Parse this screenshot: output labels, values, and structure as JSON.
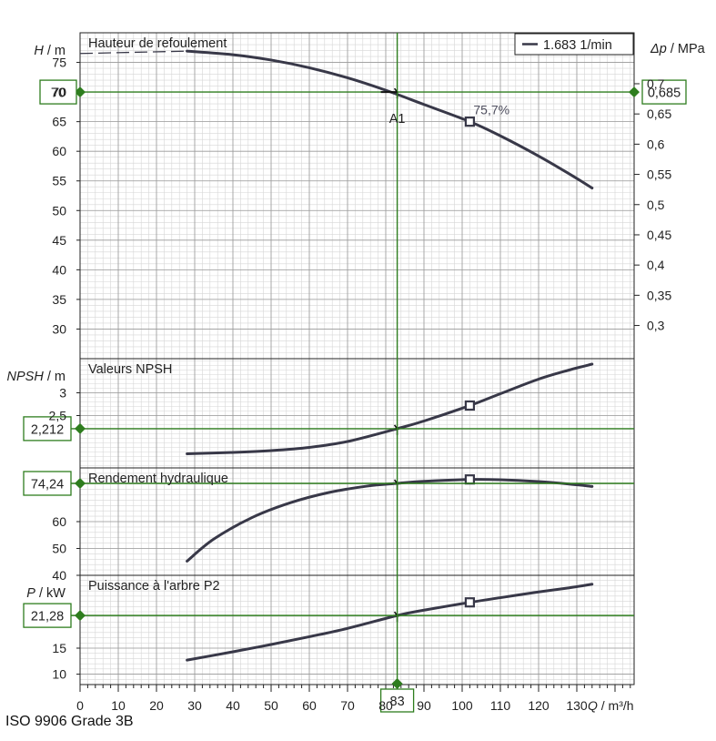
{
  "colors": {
    "curve": "#383848",
    "marker_line": "#2e7d1e",
    "marker_diamond": "#2e7d1e",
    "grid_minor": "#d6d6d6",
    "grid_major": "#9a9a9a",
    "frame": "#222222",
    "text": "#222222"
  },
  "footer_text": "ISO 9906 Grade 3B",
  "legend_text": "1.683 1/min",
  "duty_point": {
    "label": "A1",
    "q": 83,
    "q_label": "83"
  },
  "bep": {
    "q": 102,
    "efficiency_label": "75,7%"
  },
  "x_axis": {
    "label": "Q / m³/h",
    "min": 0,
    "max": 145,
    "ticks": [
      0,
      10,
      20,
      30,
      40,
      50,
      60,
      70,
      80,
      90,
      100,
      110,
      120,
      130
    ]
  },
  "chart_data": [
    {
      "id": "head",
      "type": "line",
      "title": "Hauteur de refoulement",
      "ylabel": "H / m",
      "ylim": [
        25,
        80
      ],
      "yticks": [
        30,
        35,
        40,
        45,
        50,
        55,
        60,
        65,
        70,
        75
      ],
      "right_axis": {
        "label": "Δp / MPa",
        "ticks": [
          "0,3",
          "0,35",
          "0,4",
          "0,45",
          "0,5",
          "0,55",
          "0,6",
          "0,65",
          "0,7"
        ],
        "tick_values_m": [
          30.6,
          35.7,
          40.8,
          45.9,
          51.0,
          56.1,
          61.2,
          66.3,
          71.4
        ],
        "marker_label": "0,685"
      },
      "marker_value_label": "70",
      "marker_value": 70,
      "dashed_extension": [
        [
          0,
          76.5
        ],
        [
          28,
          76.9
        ]
      ],
      "x": [
        28,
        40,
        50,
        60,
        70,
        80,
        90,
        102,
        110,
        120,
        128,
        134
      ],
      "y": [
        76.9,
        76.3,
        75.4,
        74.1,
        72.4,
        70.3,
        67.9,
        65.0,
        62.6,
        59.2,
        56.2,
        53.8
      ]
    },
    {
      "id": "npsh",
      "type": "line",
      "title": "Valeurs NPSH",
      "ylabel": "NPSH / m",
      "ylim": [
        1.35,
        3.75
      ],
      "yticks": [
        2.5,
        3
      ],
      "ytick_labels": [
        "2,5",
        "3"
      ],
      "marker_value_label": "2,212",
      "marker_value": 2.212,
      "x": [
        28,
        40,
        50,
        60,
        70,
        83,
        90,
        102,
        110,
        120,
        128,
        134
      ],
      "y": [
        1.66,
        1.69,
        1.73,
        1.8,
        1.93,
        2.212,
        2.38,
        2.72,
        2.98,
        3.3,
        3.5,
        3.63
      ]
    },
    {
      "id": "efficiency",
      "type": "line",
      "title": "Rendement hydraulique",
      "ylabel": "",
      "ylim": [
        40,
        80
      ],
      "yticks": [
        40,
        50,
        60
      ],
      "marker_value_label": "74,24",
      "marker_value": 74.24,
      "x": [
        28,
        35,
        45,
        55,
        65,
        75,
        83,
        90,
        102,
        110,
        120,
        128,
        134
      ],
      "y": [
        45.3,
        53.5,
        61.5,
        67.0,
        70.8,
        73.2,
        74.24,
        75.0,
        75.7,
        75.6,
        74.9,
        74.0,
        73.1
      ]
    },
    {
      "id": "power",
      "type": "line",
      "title": "Puissance à l'arbre P2",
      "ylabel": "P / kW",
      "ylim": [
        8,
        29
      ],
      "yticks": [
        10,
        15
      ],
      "marker_value_label": "21,28",
      "marker_value": 21.28,
      "x": [
        28,
        40,
        50,
        60,
        70,
        83,
        90,
        102,
        110,
        120,
        128,
        134
      ],
      "y": [
        12.7,
        14.3,
        15.7,
        17.2,
        18.8,
        21.28,
        22.3,
        23.8,
        24.7,
        25.8,
        26.6,
        27.3
      ]
    }
  ]
}
